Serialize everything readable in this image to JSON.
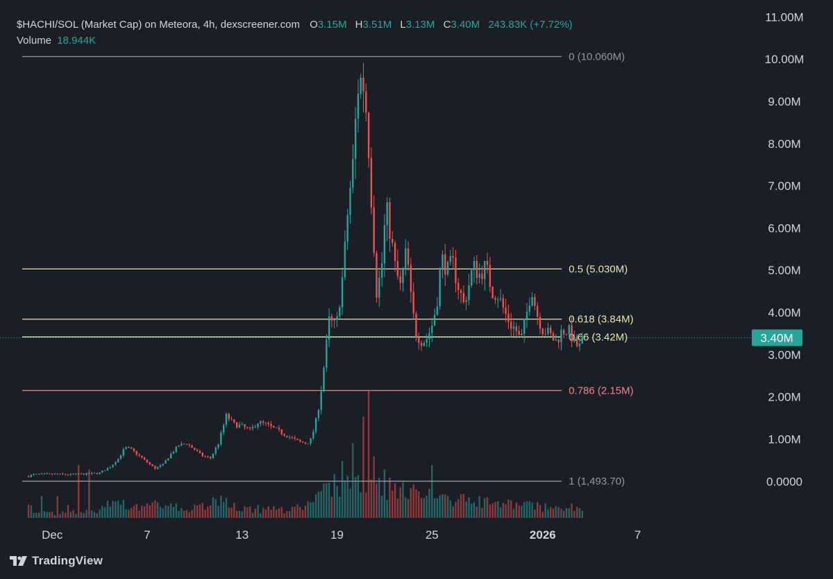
{
  "legend": {
    "title": "$HACHI/SOL (Market Cap) on Meteora, 4h, dexscreener.com",
    "o_label": "O",
    "o_value": "3.15M",
    "h_label": "H",
    "h_value": "3.51M",
    "l_label": "L",
    "l_value": "3.13M",
    "c_label": "C",
    "c_value": "3.40M",
    "change": "243.83K (+7.72%)",
    "volume_label": "Volume",
    "volume_value": "18.944K"
  },
  "footer": {
    "brand": "TradingView",
    "logo_icon": "tradingview-logo-icon"
  },
  "colors": {
    "background": "#1b1e27",
    "up": "#26a69a",
    "down": "#ef5350",
    "fib_gray": "#9598a1",
    "fib_yellow": "#e8e6a8",
    "fib_red": "#f0848a"
  },
  "chart_data": {
    "type": "candlestick",
    "y_axis": {
      "ticks": [
        "0.0000",
        "1.00M",
        "2.00M",
        "3.00M",
        "4.00M",
        "5.00M",
        "6.00M",
        "7.00M",
        "8.00M",
        "9.00M",
        "10.00M",
        "11.00M"
      ],
      "tick_values": [
        0,
        1,
        2,
        3,
        4,
        5,
        6,
        7,
        8,
        9,
        10,
        11
      ],
      "unit": "M",
      "range": [
        -0.9,
        11.4
      ]
    },
    "x_axis": {
      "ticks": [
        "Dec",
        "7",
        "13",
        "19",
        "25",
        "2026",
        "7"
      ],
      "tick_days": [
        1,
        7,
        13,
        19,
        25,
        32,
        38
      ],
      "bold": [
        "2026"
      ],
      "range_days": [
        -2.3,
        45.3
      ]
    },
    "last_price": {
      "label": "3.40M",
      "value": 3.4
    },
    "fib_levels": [
      {
        "ratio": "0",
        "label": "0 (10.060M)",
        "value": 10.06,
        "color": "gray"
      },
      {
        "ratio": "0.5",
        "label": "0.5 (5.030M)",
        "value": 5.03,
        "color": "yellow"
      },
      {
        "ratio": "0.618",
        "label": "0.618 (3.84M)",
        "value": 3.84,
        "color": "yellow"
      },
      {
        "ratio": "0.66",
        "label": "0.66 (3.42M)",
        "value": 3.42,
        "color": "yellow"
      },
      {
        "ratio": "0.786",
        "label": "0.786 (2.15M)",
        "value": 2.15,
        "color": "red"
      },
      {
        "ratio": "1",
        "label": "1 (1,493.70)",
        "value": 0.0015,
        "color": "gray"
      }
    ],
    "fib_range_days": [
      -0.9,
      33.2
    ],
    "price_path": [
      [
        -0.5,
        0.12
      ],
      [
        -0.2,
        0.16
      ],
      [
        1,
        0.17
      ],
      [
        2,
        0.16
      ],
      [
        3,
        0.17
      ],
      [
        4,
        0.2
      ],
      [
        4.7,
        0.35
      ],
      [
        5.2,
        0.55
      ],
      [
        5.6,
        0.8
      ],
      [
        6,
        0.75
      ],
      [
        6.5,
        0.6
      ],
      [
        7,
        0.45
      ],
      [
        7.5,
        0.3
      ],
      [
        8,
        0.4
      ],
      [
        8.5,
        0.65
      ],
      [
        9,
        0.85
      ],
      [
        9.5,
        0.9
      ],
      [
        10,
        0.75
      ],
      [
        10.5,
        0.6
      ],
      [
        11,
        0.55
      ],
      [
        11.5,
        0.9
      ],
      [
        12,
        1.55
      ],
      [
        12.5,
        1.35
      ],
      [
        13,
        1.3
      ],
      [
        13.5,
        1.2
      ],
      [
        14,
        1.4
      ],
      [
        14.5,
        1.35
      ],
      [
        15,
        1.25
      ],
      [
        15.5,
        1.15
      ],
      [
        16,
        1.05
      ],
      [
        16.5,
        0.95
      ],
      [
        17,
        0.9
      ],
      [
        17.3,
        0.95
      ],
      [
        17.6,
        1.3
      ],
      [
        17.9,
        1.9
      ],
      [
        18.2,
        2.8
      ],
      [
        18.5,
        3.8
      ],
      [
        18.8,
        3.7
      ],
      [
        19,
        3.8
      ],
      [
        19.4,
        5.0
      ],
      [
        19.7,
        6.5
      ],
      [
        20,
        7.5
      ],
      [
        20.3,
        9.3
      ],
      [
        20.6,
        9.6
      ],
      [
        20.9,
        8.6
      ],
      [
        21.2,
        6.5
      ],
      [
        21.5,
        4.5
      ],
      [
        21.8,
        5.0
      ],
      [
        22.1,
        6.5
      ],
      [
        22.4,
        5.8
      ],
      [
        22.7,
        5.0
      ],
      [
        23,
        4.6
      ],
      [
        23.4,
        5.5
      ],
      [
        23.7,
        4.2
      ],
      [
        24,
        3.5
      ],
      [
        24.4,
        3.3
      ],
      [
        24.7,
        3.4
      ],
      [
        25,
        3.7
      ],
      [
        25.3,
        4.2
      ],
      [
        25.6,
        5.3
      ],
      [
        26,
        5.0
      ],
      [
        26.3,
        5.2
      ],
      [
        26.6,
        4.7
      ],
      [
        27,
        4.2
      ],
      [
        27.3,
        4.6
      ],
      [
        27.6,
        5.1
      ],
      [
        28,
        4.9
      ],
      [
        28.4,
        5.1
      ],
      [
        28.8,
        4.5
      ],
      [
        29.2,
        4.4
      ],
      [
        29.6,
        4.0
      ],
      [
        30,
        3.7
      ],
      [
        30.3,
        3.6
      ],
      [
        30.6,
        3.3
      ],
      [
        31,
        4.0
      ],
      [
        31.3,
        4.6
      ],
      [
        31.6,
        4.0
      ],
      [
        32,
        3.6
      ],
      [
        32.4,
        3.5
      ],
      [
        32.8,
        3.3
      ],
      [
        33.2,
        3.55
      ],
      [
        33.6,
        3.6
      ],
      [
        34,
        3.3
      ],
      [
        34.3,
        3.15
      ],
      [
        34.6,
        3.4
      ]
    ],
    "volume_spikes": [
      [
        -0.5,
        0.3
      ],
      [
        0.4,
        0.5
      ],
      [
        1.3,
        0.5
      ],
      [
        2,
        0.3
      ],
      [
        2.6,
        1.2
      ],
      [
        3.4,
        1.1
      ],
      [
        10,
        0.3
      ],
      [
        12,
        0.45
      ],
      [
        18.9,
        1.0
      ],
      [
        19.4,
        1.3
      ],
      [
        20,
        1.7
      ],
      [
        20.6,
        2.3
      ],
      [
        21,
        2.9
      ],
      [
        21.4,
        1.4
      ],
      [
        22,
        1.1
      ],
      [
        23,
        0.6
      ],
      [
        25,
        1.2
      ],
      [
        26,
        0.5
      ],
      [
        28,
        0.5
      ],
      [
        30,
        0.4
      ],
      [
        31.4,
        0.35
      ]
    ],
    "volume_base": [
      [
        0,
        0.06
      ],
      [
        4,
        0.1
      ],
      [
        8,
        0.12
      ],
      [
        12,
        0.15
      ],
      [
        16,
        0.13
      ],
      [
        18,
        0.3
      ],
      [
        18.8,
        0.5
      ],
      [
        20.5,
        0.75
      ],
      [
        22,
        0.55
      ],
      [
        24,
        0.45
      ],
      [
        26,
        0.35
      ],
      [
        28,
        0.3
      ],
      [
        30,
        0.25
      ],
      [
        32,
        0.2
      ],
      [
        34.6,
        0.15
      ]
    ]
  }
}
